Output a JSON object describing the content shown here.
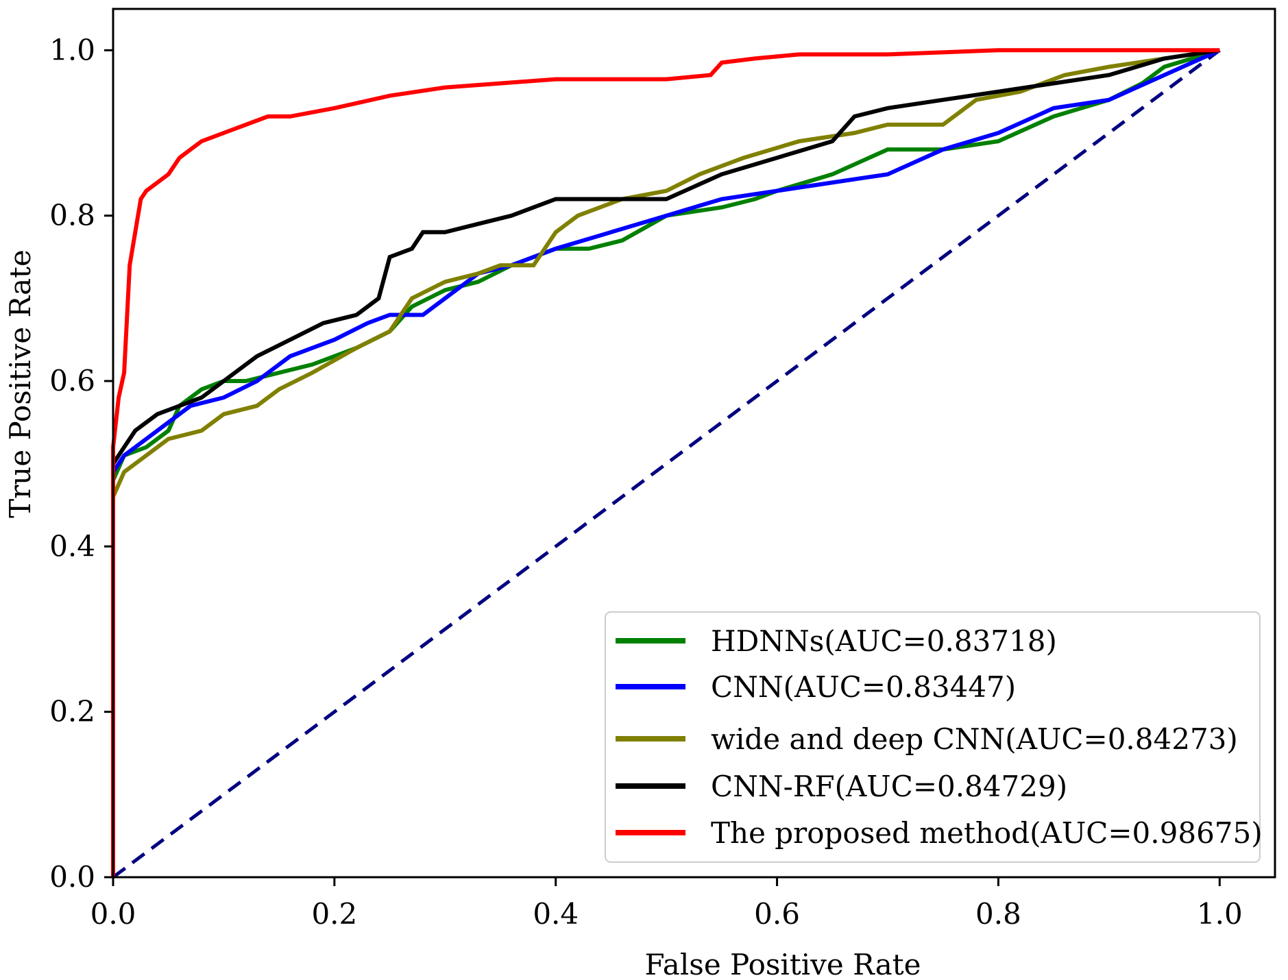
{
  "chart_data": {
    "type": "line",
    "title": "",
    "xlabel": "False Positive Rate",
    "ylabel": "True Positive Rate",
    "xlim": [
      0.0,
      1.05
    ],
    "ylim": [
      0.0,
      1.05
    ],
    "xticks": [
      0.0,
      0.2,
      0.4,
      0.6,
      0.8,
      1.0
    ],
    "yticks": [
      0.0,
      0.2,
      0.4,
      0.6,
      0.8,
      1.0
    ],
    "xtick_labels": [
      "0.0",
      "0.2",
      "0.4",
      "0.6",
      "0.8",
      "1.0"
    ],
    "ytick_labels": [
      "0.0",
      "0.2",
      "0.4",
      "0.6",
      "0.8",
      "1.0"
    ],
    "grid": false,
    "legend_position": "lower-right",
    "diagonal": {
      "name": "chance",
      "color": "#000080",
      "style": "dashed",
      "x": [
        0,
        1
      ],
      "y": [
        0,
        1
      ]
    },
    "series": [
      {
        "name": "HDNNs(AUC=0.83718)",
        "color": "#008000",
        "x": [
          0,
          0,
          0.01,
          0.03,
          0.05,
          0.06,
          0.08,
          0.1,
          0.12,
          0.15,
          0.18,
          0.2,
          0.22,
          0.25,
          0.27,
          0.3,
          0.33,
          0.36,
          0.4,
          0.43,
          0.46,
          0.5,
          0.55,
          0.58,
          0.6,
          0.65,
          0.7,
          0.75,
          0.8,
          0.85,
          0.9,
          0.93,
          0.95,
          1.0
        ],
        "y": [
          0,
          0.48,
          0.51,
          0.52,
          0.54,
          0.57,
          0.59,
          0.6,
          0.6,
          0.61,
          0.62,
          0.63,
          0.64,
          0.66,
          0.69,
          0.71,
          0.72,
          0.74,
          0.76,
          0.76,
          0.77,
          0.8,
          0.81,
          0.82,
          0.83,
          0.85,
          0.88,
          0.88,
          0.89,
          0.92,
          0.94,
          0.96,
          0.98,
          1.0
        ]
      },
      {
        "name": "CNN(AUC=0.83447)",
        "color": "#0000ff",
        "x": [
          0,
          0,
          0.01,
          0.03,
          0.05,
          0.07,
          0.1,
          0.13,
          0.16,
          0.2,
          0.23,
          0.25,
          0.28,
          0.3,
          0.33,
          0.36,
          0.4,
          0.45,
          0.5,
          0.55,
          0.6,
          0.65,
          0.7,
          0.75,
          0.8,
          0.85,
          0.9,
          0.95,
          1.0
        ],
        "y": [
          0,
          0.49,
          0.51,
          0.53,
          0.55,
          0.57,
          0.58,
          0.6,
          0.63,
          0.65,
          0.67,
          0.68,
          0.68,
          0.7,
          0.73,
          0.74,
          0.76,
          0.78,
          0.8,
          0.82,
          0.83,
          0.84,
          0.85,
          0.88,
          0.9,
          0.93,
          0.94,
          0.97,
          1.0
        ]
      },
      {
        "name": "wide and deep CNN(AUC=0.84273)",
        "color": "#808000",
        "x": [
          0,
          0,
          0.01,
          0.03,
          0.05,
          0.08,
          0.1,
          0.13,
          0.15,
          0.18,
          0.22,
          0.25,
          0.27,
          0.3,
          0.33,
          0.35,
          0.38,
          0.4,
          0.42,
          0.46,
          0.5,
          0.53,
          0.57,
          0.62,
          0.67,
          0.7,
          0.75,
          0.78,
          0.82,
          0.86,
          0.9,
          0.95,
          1.0
        ],
        "y": [
          0,
          0.46,
          0.49,
          0.51,
          0.53,
          0.54,
          0.56,
          0.57,
          0.59,
          0.61,
          0.64,
          0.66,
          0.7,
          0.72,
          0.73,
          0.74,
          0.74,
          0.78,
          0.8,
          0.82,
          0.83,
          0.85,
          0.87,
          0.89,
          0.9,
          0.91,
          0.91,
          0.94,
          0.95,
          0.97,
          0.98,
          0.99,
          1.0
        ]
      },
      {
        "name": "CNN-RF(AUC=0.84729)",
        "color": "#000000",
        "x": [
          0,
          0,
          0.01,
          0.02,
          0.04,
          0.06,
          0.08,
          0.1,
          0.13,
          0.16,
          0.19,
          0.22,
          0.24,
          0.25,
          0.27,
          0.28,
          0.3,
          0.33,
          0.36,
          0.38,
          0.4,
          0.45,
          0.5,
          0.55,
          0.6,
          0.65,
          0.67,
          0.7,
          0.75,
          0.8,
          0.85,
          0.9,
          0.95,
          1.0
        ],
        "y": [
          0,
          0.5,
          0.52,
          0.54,
          0.56,
          0.57,
          0.58,
          0.6,
          0.63,
          0.65,
          0.67,
          0.68,
          0.7,
          0.75,
          0.76,
          0.78,
          0.78,
          0.79,
          0.8,
          0.81,
          0.82,
          0.82,
          0.82,
          0.85,
          0.87,
          0.89,
          0.92,
          0.93,
          0.94,
          0.95,
          0.96,
          0.97,
          0.99,
          1.0
        ]
      },
      {
        "name": "The proposed method(AUC=0.98675)",
        "color": "#ff0000",
        "x": [
          0,
          0,
          0.005,
          0.01,
          0.015,
          0.02,
          0.025,
          0.03,
          0.04,
          0.05,
          0.06,
          0.07,
          0.08,
          0.1,
          0.12,
          0.14,
          0.16,
          0.2,
          0.25,
          0.3,
          0.35,
          0.4,
          0.45,
          0.5,
          0.54,
          0.55,
          0.58,
          0.62,
          0.7,
          0.8,
          0.9,
          1.0
        ],
        "y": [
          0,
          0.52,
          0.58,
          0.61,
          0.74,
          0.78,
          0.82,
          0.83,
          0.84,
          0.85,
          0.87,
          0.88,
          0.89,
          0.9,
          0.91,
          0.92,
          0.92,
          0.93,
          0.945,
          0.955,
          0.96,
          0.965,
          0.965,
          0.965,
          0.97,
          0.985,
          0.99,
          0.995,
          0.995,
          1.0,
          1.0,
          1.0
        ]
      }
    ]
  }
}
